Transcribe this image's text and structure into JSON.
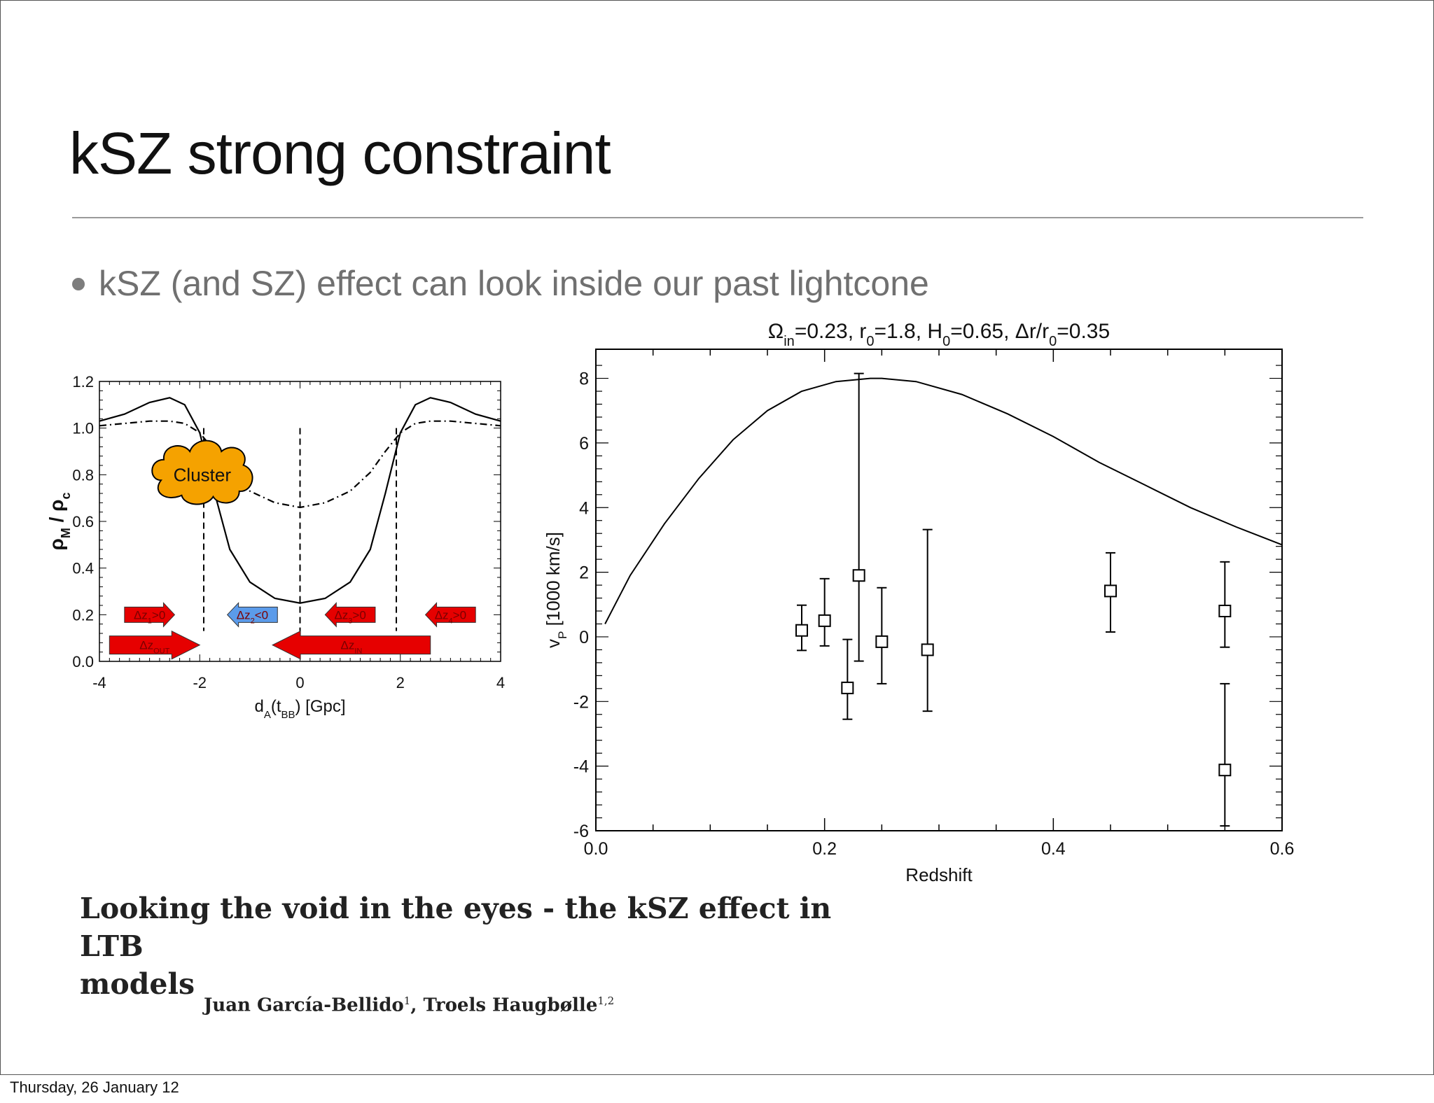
{
  "slide": {
    "title": "kSZ strong constraint",
    "bullet": "kSZ (and SZ) effect can look inside our past lightcone",
    "paper_title_line1": "Looking the void in the eyes - the kSZ effect in LTB",
    "paper_title_line2": "models",
    "author1": "Juan García-Bellido",
    "author1_sup": "1",
    "author_sep": ", ",
    "author2": "Troels Haugbølle",
    "author2_sup": "1,2",
    "footer_date": "Thursday, 26 January 12"
  },
  "chart_data": [
    {
      "type": "line",
      "xlabel": "d_A(t_BB) [Gpc]",
      "ylabel": "ρ_M / ρ_c",
      "xlim": [
        -4,
        4
      ],
      "ylim": [
        0,
        1.2
      ],
      "xticks": [
        -4,
        -2,
        0,
        2,
        4
      ],
      "yticks": [
        "0.0",
        "0.2",
        "0.4",
        "0.6",
        "0.8",
        "1.0",
        "1.2"
      ],
      "series": [
        {
          "style": "solid",
          "x": [
            -4,
            -3.5,
            -3,
            -2.6,
            -2.3,
            -2.0,
            -1.7,
            -1.4,
            -1.0,
            -0.5,
            0,
            0.5,
            1.0,
            1.4,
            1.7,
            2.0,
            2.3,
            2.6,
            3.0,
            3.5,
            4
          ],
          "y": [
            1.03,
            1.06,
            1.11,
            1.13,
            1.1,
            0.98,
            0.72,
            0.48,
            0.34,
            0.27,
            0.25,
            0.27,
            0.34,
            0.48,
            0.72,
            0.98,
            1.1,
            1.13,
            1.11,
            1.06,
            1.03
          ]
        },
        {
          "style": "dash-dot",
          "x": [
            -4,
            -3.5,
            -3,
            -2.6,
            -2.3,
            -2.0,
            -1.7,
            -1.4,
            -1.0,
            -0.5,
            0,
            0.5,
            1.0,
            1.4,
            1.7,
            2.0,
            2.3,
            2.6,
            3.0,
            3.5,
            4
          ],
          "y": [
            1.01,
            1.02,
            1.03,
            1.03,
            1.02,
            0.98,
            0.9,
            0.81,
            0.73,
            0.68,
            0.66,
            0.68,
            0.73,
            0.81,
            0.9,
            0.98,
            1.02,
            1.03,
            1.03,
            1.02,
            1.01
          ]
        }
      ],
      "vlines_dashed": [
        -1.92,
        0,
        1.92
      ],
      "annotations": {
        "cluster_label": "Cluster",
        "cluster_color": "#f5a200",
        "arrows": [
          {
            "label": "Δz",
            "sub": "1",
            "rel": ">0",
            "x0": -3.5,
            "x1": -2.5,
            "y": 0.2,
            "dir": "right",
            "color": "#e60000"
          },
          {
            "label": "Δz",
            "sub": "2",
            "rel": "<0",
            "x0": -1.45,
            "x1": -0.45,
            "y": 0.2,
            "dir": "left",
            "color": "#5b9bea"
          },
          {
            "label": "Δz",
            "sub": "3",
            "rel": ">0",
            "x0": 0.5,
            "x1": 1.5,
            "y": 0.2,
            "dir": "left",
            "color": "#e60000"
          },
          {
            "label": "Δz",
            "sub": "4",
            "rel": ">0",
            "x0": 2.5,
            "x1": 3.5,
            "y": 0.2,
            "dir": "left",
            "color": "#e60000"
          },
          {
            "label": "Δz",
            "sub": "OUT",
            "rel": "",
            "x0": -3.8,
            "x1": -2.0,
            "y": 0.07,
            "dir": "right",
            "color": "#e60000"
          },
          {
            "label": "Δz",
            "sub": "IN",
            "rel": "",
            "x0": -0.55,
            "x1": 2.6,
            "y": 0.07,
            "dir": "left",
            "color": "#e60000"
          }
        ]
      }
    },
    {
      "type": "scatter",
      "title_parts": [
        "Ω",
        "in",
        "=0.23, r",
        "0",
        "=1.8, H",
        "0",
        "=0.65, Δr/r",
        "0",
        "=0.35"
      ],
      "xlabel": "Redshift",
      "ylabel": "v_P [1000 km/s]",
      "xlim": [
        0,
        0.6
      ],
      "ylim": [
        -6,
        8.9
      ],
      "xticks": [
        "0.0",
        "0.2",
        "0.4",
        "0.6"
      ],
      "yticks": [
        "-6",
        "-4",
        "-2",
        "0",
        "2",
        "4",
        "6",
        "8"
      ],
      "curve": {
        "x": [
          0.008,
          0.03,
          0.06,
          0.09,
          0.12,
          0.15,
          0.18,
          0.21,
          0.24,
          0.25,
          0.28,
          0.32,
          0.36,
          0.4,
          0.44,
          0.48,
          0.52,
          0.56,
          0.6
        ],
        "y": [
          0.4,
          1.9,
          3.5,
          4.9,
          6.1,
          7.0,
          7.6,
          7.9,
          8.0,
          8.0,
          7.9,
          7.5,
          6.9,
          6.2,
          5.4,
          4.7,
          4.0,
          3.4,
          2.85
        ]
      },
      "points": [
        {
          "x": 0.18,
          "y": 0.2,
          "lo": -0.42,
          "hi": 0.98
        },
        {
          "x": 0.2,
          "y": 0.5,
          "lo": -0.28,
          "hi": 1.8
        },
        {
          "x": 0.22,
          "y": -1.58,
          "lo": -2.55,
          "hi": -0.08
        },
        {
          "x": 0.23,
          "y": 1.9,
          "lo": -0.75,
          "hi": 8.15
        },
        {
          "x": 0.25,
          "y": -0.15,
          "lo": -1.45,
          "hi": 1.52
        },
        {
          "x": 0.29,
          "y": -0.4,
          "lo": -2.3,
          "hi": 3.32
        },
        {
          "x": 0.45,
          "y": 1.42,
          "lo": 0.15,
          "hi": 2.6
        },
        {
          "x": 0.55,
          "y": 0.8,
          "lo": -0.32,
          "hi": 2.32
        },
        {
          "x": 0.55,
          "y": -4.12,
          "lo": -5.85,
          "hi": -1.45
        }
      ]
    }
  ]
}
